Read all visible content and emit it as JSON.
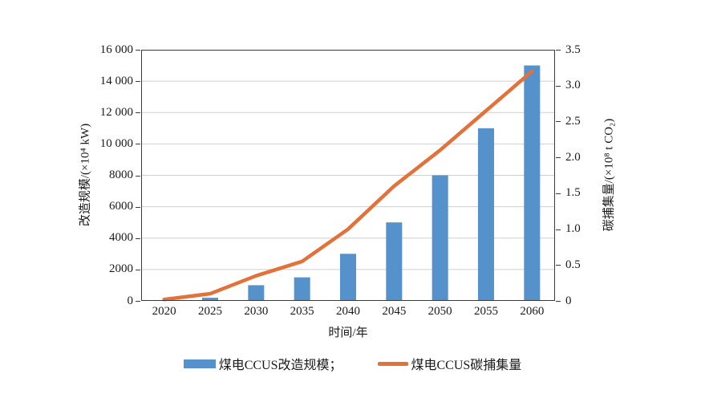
{
  "chart_data": {
    "type": "bar",
    "combo": "bar+line dual axis",
    "title": "",
    "categories": [
      "2020",
      "2025",
      "2030",
      "2035",
      "2040",
      "2045",
      "2050",
      "2055",
      "2060"
    ],
    "series": [
      {
        "name": "煤电CCUS改造规模",
        "type": "bar",
        "axis": "left",
        "color": "#5592cb",
        "values": [
          0,
          200,
          1000,
          1500,
          3000,
          5000,
          8000,
          11000,
          15000
        ]
      },
      {
        "name": "煤电CCUS碳捕集量",
        "type": "line",
        "axis": "right",
        "color": "#e2713a",
        "values": [
          0.02,
          0.1,
          0.35,
          0.55,
          1.0,
          1.6,
          2.1,
          2.65,
          3.2
        ]
      }
    ],
    "xlabel": "时间/年",
    "ylabel_left": "改造规模/(×10⁴ kW)",
    "ylabel_right": "碳捕集量/(×10⁸ t CO₂)",
    "ylim_left": [
      0,
      16000
    ],
    "ylim_right": [
      0,
      3.5
    ],
    "y_left_ticks": [
      "0",
      "2000",
      "4000",
      "6000",
      "8000",
      "10 000",
      "12 000",
      "14 000",
      "16 000"
    ],
    "y_right_ticks": [
      "0",
      "0.5",
      "1.0",
      "1.5",
      "2.0",
      "2.5",
      "3.0",
      "3.5"
    ],
    "grid": true,
    "legend_position": "bottom",
    "legend": [
      {
        "label": "煤电CCUS改造规模；",
        "swatch": "bar"
      },
      {
        "label": "煤电CCUS碳捕集量",
        "swatch": "line"
      }
    ]
  },
  "colors": {
    "bar": "#5592cb",
    "line": "#e2713a",
    "grid": "#cfcfcf",
    "axis": "#3a3a3a",
    "text": "#1a1a1a",
    "background": "#ffffff"
  }
}
